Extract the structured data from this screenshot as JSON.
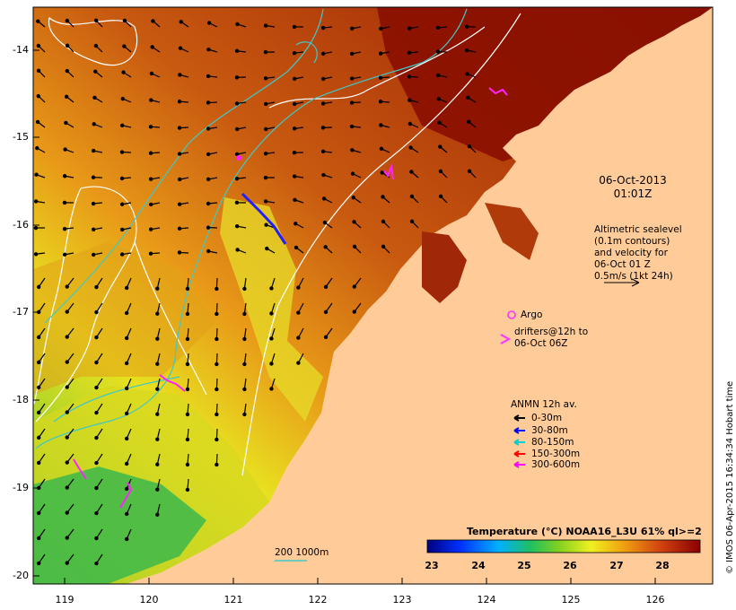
{
  "map": {
    "lat_ticks": [
      "-14",
      "-15",
      "-16",
      "-17",
      "-18",
      "-19",
      "-20"
    ],
    "lon_ticks": [
      "119",
      "120",
      "121",
      "122",
      "123",
      "124",
      "125",
      "126"
    ],
    "date_line1": "06-Oct-2013",
    "date_line2": "01:01Z",
    "altimetry": [
      "Altimetric sealevel",
      "(0.1m contours)",
      "and velocity for",
      "06-Oct 01 Z",
      "0.5m/s (1kt 24h)"
    ],
    "argo_label": "Argo",
    "drifters_line1": "drifters@12h to",
    "drifters_line2": "06-Oct 06Z",
    "anmn_title": "ANMN 12h av.",
    "anmn_items": [
      {
        "label": "0-30m",
        "color": "#000000"
      },
      {
        "label": "30-80m",
        "color": "#0000ff"
      },
      {
        "label": "80-150m",
        "color": "#00d0d0"
      },
      {
        "label": "150-300m",
        "color": "#ff0000"
      },
      {
        "label": "300-600m",
        "color": "#ff00ff"
      }
    ],
    "scale_label": "200  1000m",
    "colorbar_title": "Temperature (°C) NOAA16_L3U 61% ql>=2",
    "colorbar_ticks": [
      "23",
      "24",
      "25",
      "26",
      "27",
      "28"
    ],
    "credit": "© IMOS 06-Apr-2015 16:34:34 Hobart time",
    "colors": {
      "land": "#ffcc99",
      "isobath": "#40c8c8",
      "contour": "#ffffff",
      "argo": "#ff33ff"
    }
  }
}
